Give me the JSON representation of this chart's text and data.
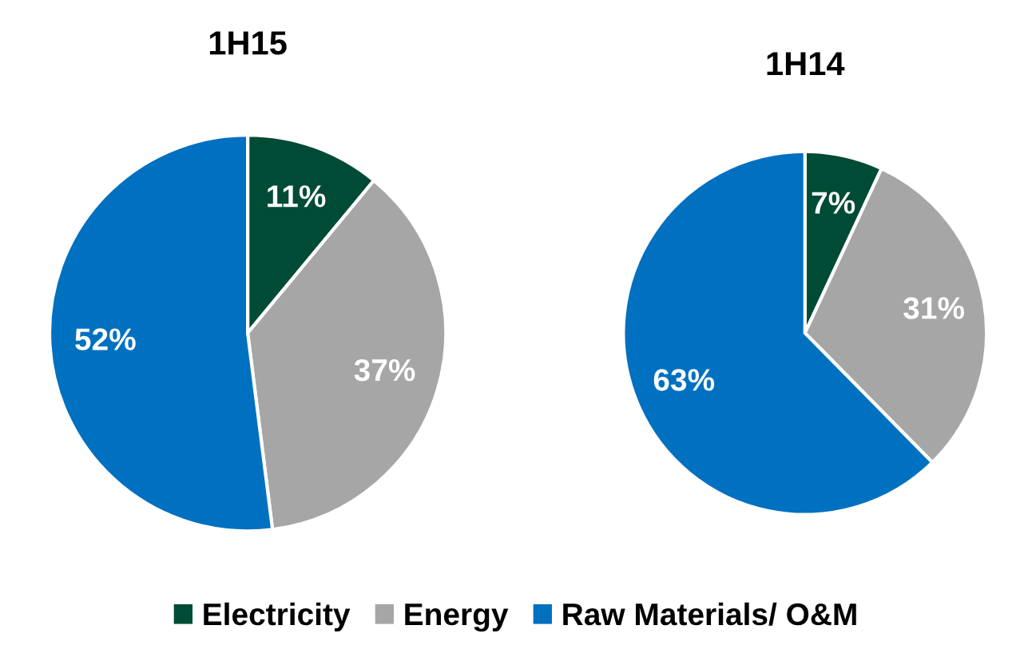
{
  "chart_data": [
    {
      "type": "pie",
      "title": "1H15",
      "categories": [
        "Electricity",
        "Energy",
        "Raw Materials/ O&M"
      ],
      "values": [
        11,
        37,
        52
      ],
      "colors": [
        "#004b35",
        "#a6a6a6",
        "#0070c0"
      ],
      "value_labels": [
        "11%",
        "37%",
        "52%"
      ],
      "legend": "bottom"
    },
    {
      "type": "pie",
      "title": "1H14",
      "categories": [
        null,
        null,
        null
      ],
      "values": [
        7,
        31,
        63
      ],
      "colors": [
        "#004b35",
        "#a6a6a6",
        "#0070c0"
      ],
      "value_labels": [
        "7%",
        "31%",
        "63%"
      ]
    }
  ]
}
